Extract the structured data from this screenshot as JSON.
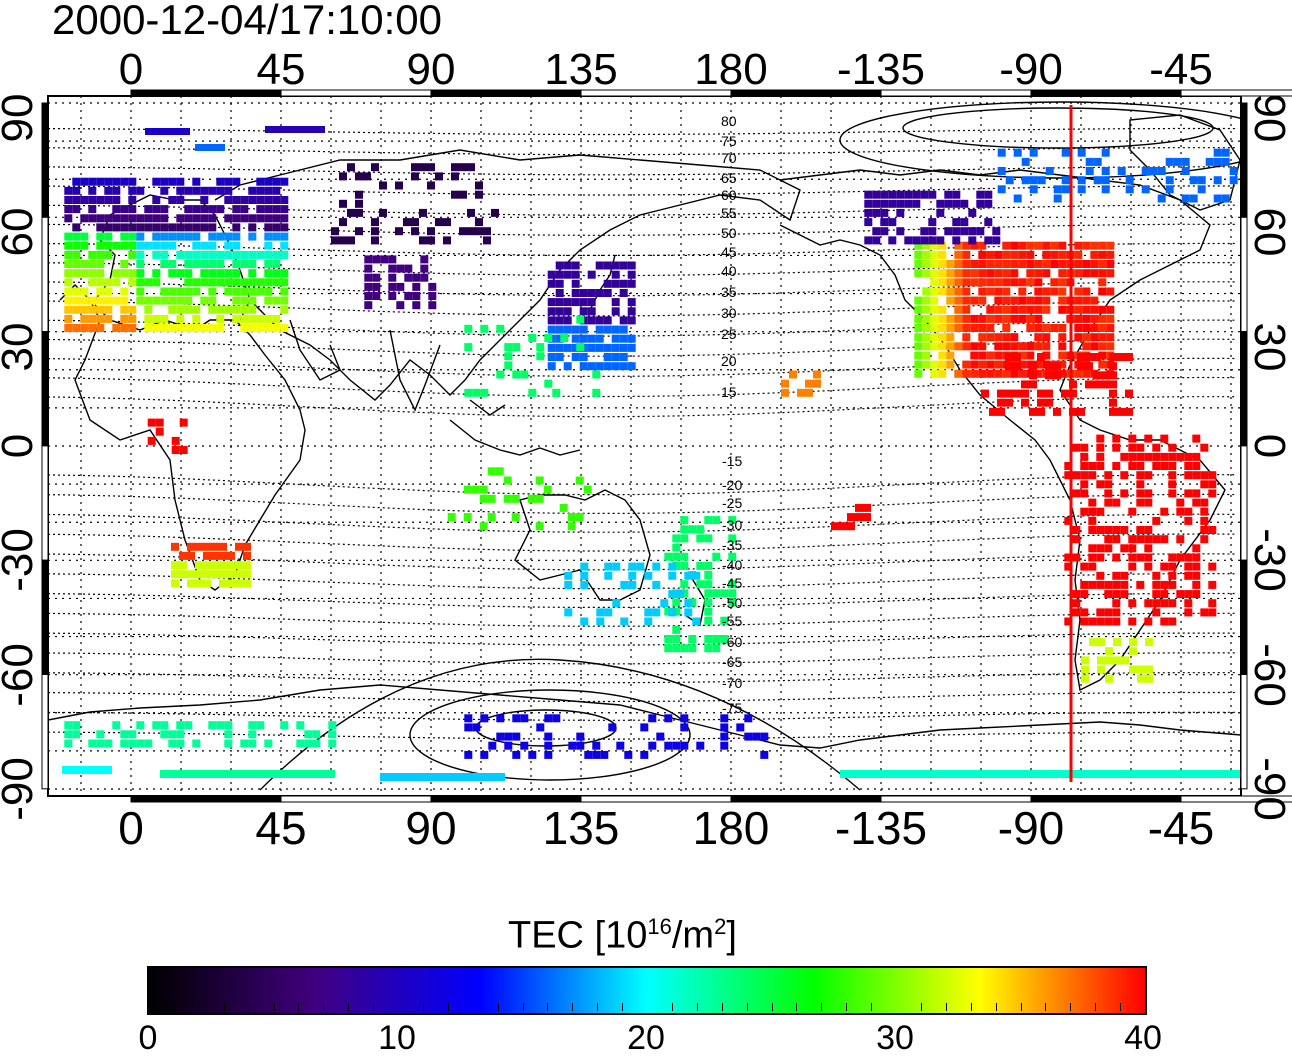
{
  "timestamp": "2000-12-04/17:10:00",
  "map": {
    "projection": "equirectangular, longitude 0 at left offset, -180..180 wrap",
    "longitude_ticks_top": [
      "0",
      "45",
      "90",
      "135",
      "180",
      "-135",
      "-90",
      "-45"
    ],
    "longitude_ticks_bottom": [
      "0",
      "45",
      "90",
      "135",
      "180",
      "-135",
      "-90",
      "-45"
    ],
    "latitude_ticks_left": [
      "90",
      "60",
      "30",
      "0",
      "-30",
      "-60",
      "-90"
    ],
    "latitude_ticks_right": [
      "90",
      "60",
      "30",
      "0",
      "-30",
      "-60",
      "-90"
    ],
    "contour_labels_north": [
      "80",
      "75",
      "70",
      "65",
      "60",
      "55",
      "50",
      "45",
      "40",
      "35",
      "30",
      "25",
      "20",
      "15"
    ],
    "contour_labels_south": [
      "-15",
      "-20",
      "-25",
      "-30",
      "-35",
      "-40",
      "-45",
      "-50",
      "-55",
      "-60",
      "-65",
      "-70",
      "-75"
    ],
    "meridian_marker_color": "#ff0000",
    "grid": true
  },
  "colorbar": {
    "title_prefix": "TEC  [10",
    "title_exp1": "16",
    "title_mid": "/m",
    "title_exp2": "2",
    "title_suffix": "]",
    "ticks": [
      "0",
      "10",
      "20",
      "30",
      "40"
    ],
    "range": [
      0,
      40
    ],
    "colors": [
      "#000000",
      "#40007f",
      "#0000ff",
      "#00ffff",
      "#00ff00",
      "#ffff00",
      "#ff0000"
    ]
  }
}
